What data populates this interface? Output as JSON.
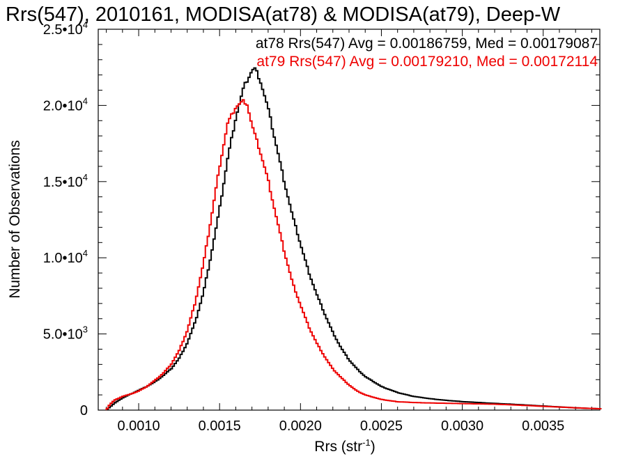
{
  "chart_data": {
    "type": "line",
    "title": "Rrs(547), 2010161, MODISA(at78) & MODISA(at79), Deep-W",
    "xlabel": "Rrs (str",
    "xlabel_sup": "-1",
    "xlabel_close": ")",
    "ylabel": "Number of Observations",
    "xlim": [
      0.00075,
      0.00385
    ],
    "ylim": [
      0,
      25000
    ],
    "grid": false,
    "x_ticks": [
      {
        "value": 0.001,
        "label": "0.0010"
      },
      {
        "value": 0.0015,
        "label": "0.0015"
      },
      {
        "value": 0.002,
        "label": "0.0020"
      },
      {
        "value": 0.0025,
        "label": "0.0025"
      },
      {
        "value": 0.003,
        "label": "0.0030"
      },
      {
        "value": 0.0035,
        "label": "0.0035"
      }
    ],
    "y_ticks": [
      {
        "value": 0,
        "base": "0",
        "exp": ""
      },
      {
        "value": 5000,
        "base": "5.0•10",
        "exp": "3"
      },
      {
        "value": 10000,
        "base": "1.0•10",
        "exp": "4"
      },
      {
        "value": 15000,
        "base": "1.5•10",
        "exp": "4"
      },
      {
        "value": 20000,
        "base": "2.0•10",
        "exp": "4"
      },
      {
        "value": 25000,
        "base": "2.5•10",
        "exp": "4"
      }
    ],
    "legend": [
      {
        "text": "at78 Rrs(547) Avg = 0.00186759, Med = 0.00179087",
        "color": "#000000"
      },
      {
        "text": "at79 Rrs(547) Avg = 0.00179210, Med = 0.00172114",
        "color": "#ee0000"
      }
    ],
    "series": [
      {
        "color": "#000000",
        "x": [
          0.0008,
          0.00085,
          0.0009,
          0.00095,
          0.001,
          0.00105,
          0.0011,
          0.00115,
          0.0012,
          0.00125,
          0.0013,
          0.00135,
          0.0014,
          0.00145,
          0.0015,
          0.00155,
          0.0016,
          0.00165,
          0.0017,
          0.00172,
          0.00175,
          0.0018,
          0.00185,
          0.0019,
          0.00195,
          0.002,
          0.00205,
          0.0021,
          0.00215,
          0.0022,
          0.00225,
          0.0023,
          0.00235,
          0.0024,
          0.0025,
          0.0026,
          0.0027,
          0.0028,
          0.0029,
          0.003,
          0.0031,
          0.0032,
          0.0033,
          0.0034,
          0.0035,
          0.0036,
          0.0037,
          0.0038,
          0.00385
        ],
        "values": [
          0,
          450,
          800,
          1050,
          1300,
          1550,
          1850,
          2250,
          2700,
          3400,
          4400,
          5800,
          7700,
          10300,
          13200,
          16500,
          19200,
          21200,
          22300,
          22400,
          21700,
          19800,
          17400,
          15000,
          12800,
          10900,
          9100,
          7600,
          6300,
          5100,
          4100,
          3300,
          2700,
          2200,
          1550,
          1150,
          900,
          750,
          640,
          560,
          500,
          440,
          390,
          330,
          270,
          210,
          150,
          110,
          90
        ]
      },
      {
        "color": "#ee0000",
        "x": [
          0.0008,
          0.00082,
          0.00085,
          0.0009,
          0.00095,
          0.001,
          0.00105,
          0.0011,
          0.00115,
          0.0012,
          0.00125,
          0.0013,
          0.00135,
          0.0014,
          0.00145,
          0.0015,
          0.00155,
          0.0016,
          0.00165,
          0.00167,
          0.0017,
          0.00175,
          0.0018,
          0.00185,
          0.0019,
          0.00195,
          0.002,
          0.00205,
          0.0021,
          0.00215,
          0.0022,
          0.00225,
          0.0023,
          0.00235,
          0.0024,
          0.0025,
          0.0026,
          0.0027,
          0.0028,
          0.0029,
          0.003,
          0.0031,
          0.0032,
          0.0033,
          0.0034,
          0.0035,
          0.0036,
          0.0037,
          0.0038,
          0.00385
        ],
        "values": [
          0,
          350,
          650,
          900,
          1050,
          1250,
          1550,
          1950,
          2400,
          3000,
          3900,
          5200,
          7100,
          9600,
          12700,
          16000,
          18800,
          19900,
          20300,
          20100,
          18700,
          17000,
          15100,
          12700,
          10400,
          8400,
          6900,
          5500,
          4400,
          3500,
          2700,
          2150,
          1650,
          1250,
          1000,
          700,
          550,
          500,
          470,
          450,
          430,
          410,
          390,
          350,
          300,
          250,
          200,
          150,
          110,
          90
        ]
      }
    ]
  }
}
